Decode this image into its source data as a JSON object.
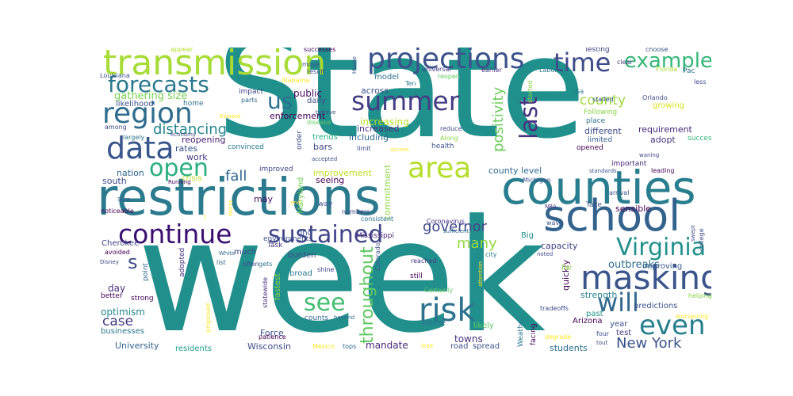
{
  "words": [
    {
      "text": "State",
      "color": "#20908d"
    },
    {
      "text": "week",
      "color": "#21908d"
    },
    {
      "text": "restrictions",
      "color": "#2b7a8e"
    },
    {
      "text": "counties",
      "color": "#287d8e"
    },
    {
      "text": "school",
      "color": "#33638d"
    },
    {
      "text": "transmission",
      "color": "#a7db35"
    },
    {
      "text": "projections",
      "color": "#3b528b"
    },
    {
      "text": "masking",
      "color": "#3a548c"
    },
    {
      "text": "area",
      "color": "#b5de2b"
    },
    {
      "text": "continue",
      "color": "#3b0f70"
    },
    {
      "text": "sustained",
      "color": "#414487"
    },
    {
      "text": "summer",
      "color": "#433e85"
    },
    {
      "text": "risk",
      "color": "#2c728e"
    },
    {
      "text": "data",
      "color": "#39568c"
    },
    {
      "text": "region",
      "color": "#2e6d8e"
    },
    {
      "text": "forecasts",
      "color": "#2a788e"
    },
    {
      "text": "time",
      "color": "#3e4a89"
    },
    {
      "text": "example",
      "color": "#35b779"
    },
    {
      "text": "open",
      "color": "#29af7f"
    },
    {
      "text": "Virginia",
      "color": "#21918c"
    },
    {
      "text": "will",
      "color": "#31688e"
    },
    {
      "text": "even",
      "color": "#277f8e"
    },
    {
      "text": "see",
      "color": "#42be71"
    },
    {
      "text": "last",
      "color": "#46337e"
    },
    {
      "text": "throughout",
      "color": "#5ec962"
    },
    {
      "text": "us",
      "color": "#2d708e"
    },
    {
      "text": "New York",
      "color": "#3b528b"
    },
    {
      "text": "distancing",
      "color": "#25858e"
    },
    {
      "text": "county",
      "color": "#9fda3a"
    },
    {
      "text": "governor",
      "color": "#3f4788"
    },
    {
      "text": "positivity",
      "color": "#6ccd5a"
    },
    {
      "text": "fall",
      "color": "#31688e"
    },
    {
      "text": "many",
      "color": "#95d840"
    },
    {
      "text": "gathering size",
      "color": "#7ad151"
    },
    {
      "text": "case",
      "color": "#443a83"
    },
    {
      "text": "s",
      "color": "#3e4989"
    },
    {
      "text": "outbreaks",
      "color": "#2e6e8e"
    },
    {
      "text": "public",
      "color": "#470e61"
    },
    {
      "text": "across",
      "color": "#3b528b"
    },
    {
      "text": "model",
      "color": "#2c718e"
    },
    {
      "text": "increasing",
      "color": "#b8de29"
    },
    {
      "text": "increased",
      "color": "#46307e"
    },
    {
      "text": "including",
      "color": "#31688e"
    },
    {
      "text": "enforcement",
      "color": "#440154"
    },
    {
      "text": "daily",
      "color": "#3e4c8a"
    },
    {
      "text": "trends",
      "color": "#27ad81"
    },
    {
      "text": "bars",
      "color": "#3f4788"
    },
    {
      "text": "work",
      "color": "#443b84"
    },
    {
      "text": "nation",
      "color": "#31688e"
    },
    {
      "text": "south",
      "color": "#3e4989"
    },
    {
      "text": "rates",
      "color": "#3b528b"
    },
    {
      "text": "reopening",
      "color": "#482173"
    },
    {
      "text": "convinced",
      "color": "#2a788e"
    },
    {
      "text": "improvement",
      "color": "#bddf26"
    },
    {
      "text": "county level",
      "color": "#31688e"
    },
    {
      "text": "improved",
      "color": "#3f4889"
    },
    {
      "text": "seeing",
      "color": "#440154"
    },
    {
      "text": "Maryland",
      "color": "#6ece58"
    },
    {
      "text": "commitment",
      "color": "#8fd744"
    },
    {
      "text": "may",
      "color": "#460a5d"
    },
    {
      "text": "find",
      "color": "#3b528b"
    },
    {
      "text": "day",
      "color": "#472d7b"
    },
    {
      "text": "optimism",
      "color": "#25858e"
    },
    {
      "text": "University",
      "color": "#33638d"
    },
    {
      "text": "businesses",
      "color": "#2a788e"
    },
    {
      "text": "residents",
      "color": "#1f9e89"
    },
    {
      "text": "Wisconsin",
      "color": "#3e4a89"
    },
    {
      "text": "Force",
      "color": "#3b528b"
    },
    {
      "text": "mandate",
      "color": "#482576"
    },
    {
      "text": "towns",
      "color": "#46307e"
    },
    {
      "text": "students",
      "color": "#2c718e"
    },
    {
      "text": "requirement",
      "color": "#482878"
    },
    {
      "text": "adopt",
      "color": "#463480"
    },
    {
      "text": "different",
      "color": "#3e4a89"
    },
    {
      "text": "limited",
      "color": "#365c8d"
    },
    {
      "text": "opened",
      "color": "#440154"
    },
    {
      "text": "important",
      "color": "#482475"
    },
    {
      "text": "test",
      "color": "#443983"
    },
    {
      "text": "year",
      "color": "#3b528b"
    },
    {
      "text": "past",
      "color": "#20928c"
    },
    {
      "text": "Arizona",
      "color": "#440154"
    },
    {
      "text": "strength",
      "color": "#26818e"
    },
    {
      "text": "improving",
      "color": "#38588c"
    },
    {
      "text": "predictions",
      "color": "#3a538b"
    },
    {
      "text": "capacity",
      "color": "#414287"
    },
    {
      "text": "quickly",
      "color": "#440154"
    },
    {
      "text": "Big",
      "color": "#21918c"
    },
    {
      "text": "sensible",
      "color": "#440154"
    },
    {
      "text": "Take",
      "color": "#3b528b"
    },
    {
      "text": "Growing",
      "color": "#3b528b"
    },
    {
      "text": "growing",
      "color": "#d8e219"
    },
    {
      "text": "Following",
      "color": "#8bd646"
    },
    {
      "text": "place",
      "color": "#2d708e"
    },
    {
      "text": "success",
      "color": "#35b779"
    },
    {
      "text": "leading",
      "color": "#440154"
    },
    {
      "text": "Orlando",
      "color": "#3e4a89"
    },
    {
      "text": "stalled",
      "color": "#3b528b"
    },
    {
      "text": "Florida",
      "color": "#addc30"
    },
    {
      "text": "Labor",
      "color": "#2a788e"
    },
    {
      "text": "Testing",
      "color": "#414487"
    },
    {
      "text": "choose",
      "color": "#3b528b"
    },
    {
      "text": "Pac",
      "color": "#2c718e"
    },
    {
      "text": "less",
      "color": "#3e4a89"
    },
    {
      "text": "clear",
      "color": "#453781"
    },
    {
      "text": "Ga",
      "color": "#2a788e"
    },
    {
      "text": "started",
      "color": "#8bd646"
    },
    {
      "text": "earlier",
      "color": "#46307e"
    },
    {
      "text": "universal",
      "color": "#453781"
    },
    {
      "text": "reopen",
      "color": "#5ec962"
    },
    {
      "text": "move",
      "color": "#3b528b"
    },
    {
      "text": "result",
      "color": "#3e4a89"
    },
    {
      "text": "successes",
      "color": "#440154"
    },
    {
      "text": "appear",
      "color": "#b5de2b"
    },
    {
      "text": "Louisiana",
      "color": "#3b528b"
    },
    {
      "text": "Alabama",
      "color": "#fde725"
    },
    {
      "text": "impact",
      "color": "#3e4a89"
    },
    {
      "text": "parts",
      "color": "#31688e"
    },
    {
      "text": "likelihood",
      "color": "#3b528b"
    },
    {
      "text": "home",
      "color": "#2d708e"
    },
    {
      "text": "among",
      "color": "#3f4788"
    },
    {
      "text": "largely",
      "color": "#2c718e"
    },
    {
      "text": "economy",
      "color": "#3e4a89"
    },
    {
      "text": "Running",
      "color": "#440154"
    },
    {
      "text": "crisis",
      "color": "#bddf26"
    },
    {
      "text": "noticeable",
      "color": "#440154"
    },
    {
      "text": "Cherokee",
      "color": "#414487"
    },
    {
      "text": "avoided",
      "color": "#440154"
    },
    {
      "text": "Disney",
      "color": "#3e4a89"
    },
    {
      "text": "point",
      "color": "#31688e"
    },
    {
      "text": "adopted",
      "color": "#46307e"
    },
    {
      "text": "better",
      "color": "#440154"
    },
    {
      "text": "strong",
      "color": "#440154"
    },
    {
      "text": "much",
      "color": "#3f4788"
    },
    {
      "text": "Task",
      "color": "#453781"
    },
    {
      "text": "gets",
      "color": "#2c718e"
    },
    {
      "text": "statewide",
      "color": "#46307e"
    },
    {
      "text": "fastest",
      "color": "#8bd646"
    },
    {
      "text": "proposed",
      "color": "#fde725"
    },
    {
      "text": "environments",
      "color": "#3b528b"
    },
    {
      "text": "list",
      "color": "#31688e"
    },
    {
      "text": "often",
      "color": "#3e4a89"
    },
    {
      "text": "numbers",
      "color": "#414487"
    },
    {
      "text": "consistent",
      "color": "#2c718e"
    },
    {
      "text": "Mississippi",
      "color": "#482576"
    },
    {
      "text": "reached",
      "color": "#453781"
    },
    {
      "text": "burden",
      "color": "#3e4a89"
    },
    {
      "text": "broad",
      "color": "#2a788e"
    },
    {
      "text": "shine",
      "color": "#3e4a89"
    },
    {
      "text": "Colorado",
      "color": "#3b528b"
    },
    {
      "text": "Certainly",
      "color": "#5ec962"
    },
    {
      "text": "course",
      "color": "#31688e"
    },
    {
      "text": "counts",
      "color": "#31688e"
    },
    {
      "text": "beyond",
      "color": "#31688e"
    },
    {
      "text": "patience",
      "color": "#440154"
    },
    {
      "text": "Mexico",
      "color": "#fde725"
    },
    {
      "text": "tops",
      "color": "#31688e"
    },
    {
      "text": "road",
      "color": "#3b528b"
    },
    {
      "text": "spread",
      "color": "#3b528b"
    },
    {
      "text": "likely",
      "color": "#5ec962"
    },
    {
      "text": "Weather",
      "color": "#2a788e"
    },
    {
      "text": "facing",
      "color": "#440154"
    },
    {
      "text": "degrade",
      "color": "#fde725"
    },
    {
      "text": "four",
      "color": "#3b528b"
    },
    {
      "text": "tout",
      "color": "#3e4a89"
    },
    {
      "text": "tradeoffs",
      "color": "#3e4a89"
    },
    {
      "text": "worsening",
      "color": "#fde725"
    },
    {
      "text": "helping",
      "color": "#8bd646"
    },
    {
      "text": "college",
      "color": "#3e4a89"
    },
    {
      "text": "swept",
      "color": "#3e4a89"
    },
    {
      "text": "NBA",
      "color": "#453781"
    },
    {
      "text": "wave",
      "color": "#3b528b"
    },
    {
      "text": "arrival",
      "color": "#3b528b"
    },
    {
      "text": "Michigan",
      "color": "#3b528b"
    },
    {
      "text": "standards",
      "color": "#3b528b"
    },
    {
      "text": "Coronavirus",
      "color": "#46307e"
    },
    {
      "text": "sufficient",
      "color": "#31688e"
    },
    {
      "text": "noted",
      "color": "#3e4a89"
    },
    {
      "text": "city",
      "color": "#2a788e"
    },
    {
      "text": "attention",
      "color": "#fde725"
    },
    {
      "text": "far",
      "color": "#8bd646"
    },
    {
      "text": "White",
      "color": "#31688e"
    },
    {
      "text": "Sure",
      "color": "#3b528b"
    },
    {
      "text": "World",
      "color": "#fde725"
    },
    {
      "text": "end",
      "color": "#fde725"
    },
    {
      "text": "way",
      "color": "#3b528b"
    },
    {
      "text": "still",
      "color": "#440154"
    },
    {
      "text": "order",
      "color": "#3e4a89"
    },
    {
      "text": "disease",
      "color": "#5ec962"
    },
    {
      "text": "believe",
      "color": "#3e4a89"
    },
    {
      "text": "reduce",
      "color": "#3e4a89"
    },
    {
      "text": "Along",
      "color": "#8bd646"
    },
    {
      "text": "health",
      "color": "#3b528b"
    },
    {
      "text": "limit",
      "color": "#3e4a89"
    },
    {
      "text": "access",
      "color": "#fde725"
    },
    {
      "text": "Ten",
      "color": "#2a788e"
    },
    {
      "text": "House",
      "color": "#3b528b"
    },
    {
      "text": "accepted",
      "color": "#3e4a89"
    },
    {
      "text": "Edward",
      "color": "#fde725"
    },
    {
      "text": "lead",
      "color": "#fde725"
    },
    {
      "text": "waning",
      "color": "#3e4a89"
    },
    {
      "text": "1",
      "color": "#fde725"
    }
  ]
}
